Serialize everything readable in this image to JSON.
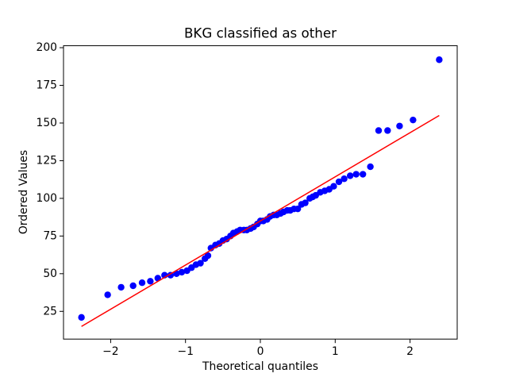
{
  "chart_data": {
    "type": "scatter",
    "title": "BKG classified as other",
    "x_label": "Theoretical quantiles",
    "y_label": "Ordered Values",
    "xlim": [
      -2.63,
      2.63
    ],
    "ylim": [
      6.6,
      201.3
    ],
    "xticks": [
      {
        "value": -2,
        "label": "−2"
      },
      {
        "value": -1,
        "label": "−1"
      },
      0,
      1,
      2
    ],
    "yticks": [
      25,
      50,
      75,
      100,
      125,
      150,
      175,
      200
    ],
    "series": [
      {
        "color": "#0000ff",
        "x": [
          -2.39,
          -2.04,
          -1.86,
          -1.7,
          -1.58,
          -1.47,
          -1.37,
          -1.28,
          -1.2,
          -1.12,
          -1.05,
          -0.98,
          -0.92,
          -0.86,
          -0.8,
          -0.74,
          -0.7,
          -0.66,
          -0.6,
          -0.55,
          -0.5,
          -0.45,
          -0.4,
          -0.36,
          -0.31,
          -0.27,
          -0.22,
          -0.18,
          -0.13,
          -0.09,
          -0.04,
          0,
          0.04,
          0.09,
          0.13,
          0.18,
          0.22,
          0.27,
          0.31,
          0.36,
          0.4,
          0.45,
          0.5,
          0.55,
          0.6,
          0.66,
          0.7,
          0.74,
          0.8,
          0.86,
          0.92,
          0.98,
          1.05,
          1.12,
          1.2,
          1.28,
          1.37,
          1.47,
          1.58,
          1.7,
          1.86,
          2.04,
          2.39
        ],
        "values": [
          21,
          36,
          41,
          42,
          44,
          45,
          47,
          49,
          49,
          50,
          51,
          52,
          54,
          56,
          57,
          60,
          62,
          67,
          69,
          70,
          72,
          73,
          75,
          77,
          78,
          79,
          79,
          79,
          80,
          81,
          83,
          85,
          85,
          86,
          88,
          89,
          89,
          90,
          91,
          92,
          92,
          93,
          93,
          96,
          97,
          100,
          101,
          102,
          104,
          105,
          106,
          108,
          111,
          113,
          115,
          116,
          116,
          121,
          145,
          145,
          148,
          152,
          192
        ]
      },
      {
        "type": "line",
        "color": "#ff0000",
        "x": [
          -2.39,
          2.39
        ],
        "values": [
          15,
          155
        ]
      }
    ]
  }
}
